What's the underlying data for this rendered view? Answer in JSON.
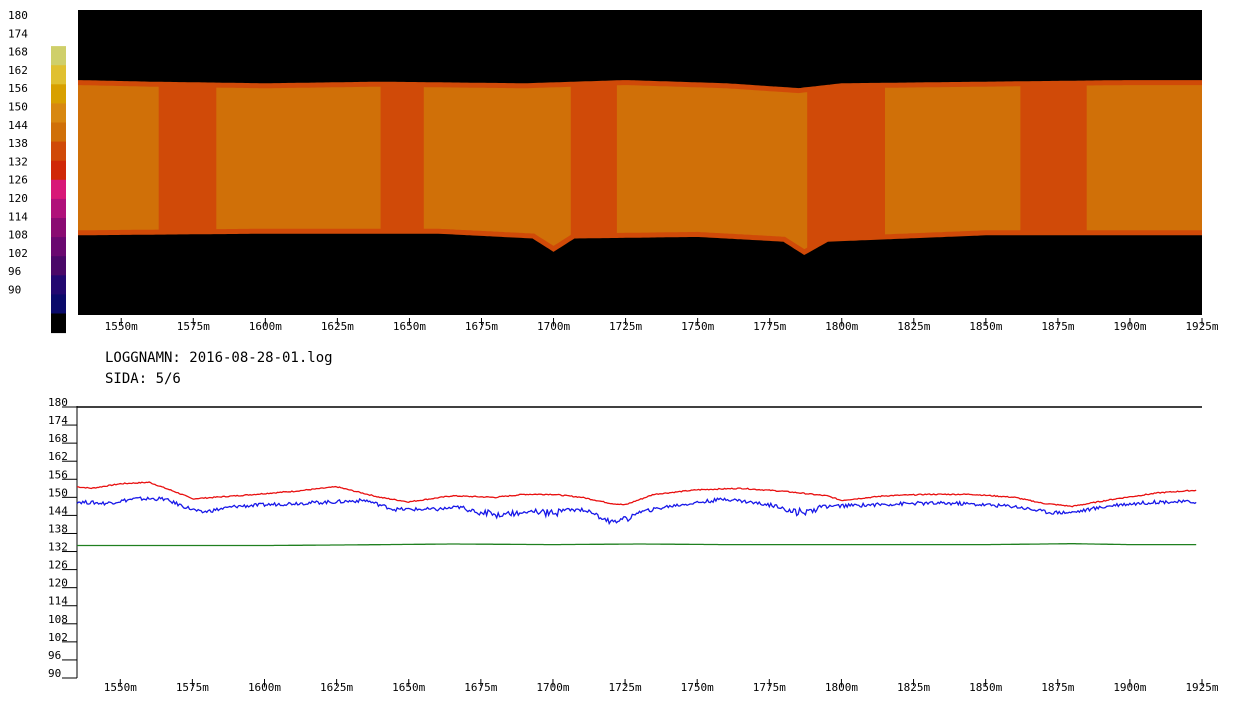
{
  "info": {
    "log_label": "LOGGNAMN: 2016-08-28-01.log",
    "page_label": "SIDA: 5/6"
  },
  "chart_data": [
    {
      "type": "heatmap",
      "title": "",
      "x_unit": "m",
      "x_range": [
        1535,
        1925
      ],
      "x_ticks": [
        "1550m",
        "1575m",
        "1600m",
        "1625m",
        "1650m",
        "1675m",
        "1700m",
        "1725m",
        "1750m",
        "1775m",
        "1800m",
        "1825m",
        "1850m",
        "1875m",
        "1900m",
        "1925m"
      ],
      "colorbar": {
        "labels": [
          "180",
          "174",
          "168",
          "162",
          "156",
          "150",
          "144",
          "138",
          "132",
          "126",
          "120",
          "114",
          "108",
          "102",
          "96",
          "90"
        ],
        "colors": [
          "#ffffff",
          "#cfcf6a",
          "#e0c030",
          "#d8a000",
          "#d88810",
          "#d07008",
          "#d04a08",
          "#d02808",
          "#d81878",
          "#b0107a",
          "#8a0b72",
          "#6a0870",
          "#4a0868",
          "#220870",
          "#0a0a6a",
          "#000000"
        ]
      },
      "band": {
        "top_edge": [
          [
            1535,
            163
          ],
          [
            1560,
            162.5
          ],
          [
            1600,
            162
          ],
          [
            1640,
            162.5
          ],
          [
            1690,
            162
          ],
          [
            1725,
            163
          ],
          [
            1760,
            162
          ],
          [
            1785,
            160.5
          ],
          [
            1800,
            162
          ],
          [
            1850,
            162.5
          ],
          [
            1900,
            163
          ],
          [
            1925,
            163
          ]
        ],
        "bottom_edge": [
          [
            1535,
            115
          ],
          [
            1600,
            115.5
          ],
          [
            1660,
            115.5
          ],
          [
            1693,
            114
          ],
          [
            1700,
            110
          ],
          [
            1707,
            114
          ],
          [
            1750,
            114.5
          ],
          [
            1780,
            113
          ],
          [
            1787,
            109
          ],
          [
            1795,
            113
          ],
          [
            1850,
            115
          ],
          [
            1925,
            115
          ]
        ],
        "fill_color": "#d07008",
        "edge_color": "#d04a08",
        "darker_zones": [
          [
            1563,
            1583
          ],
          [
            1640,
            1655
          ],
          [
            1706,
            1722
          ],
          [
            1788,
            1815
          ],
          [
            1862,
            1885
          ]
        ]
      }
    },
    {
      "type": "line",
      "title": "",
      "x_unit": "m",
      "x_range": [
        1535,
        1925
      ],
      "ylim": [
        90,
        180
      ],
      "y_ticks": [
        "180",
        "174",
        "168",
        "162",
        "156",
        "150",
        "144",
        "138",
        "132",
        "126",
        "120",
        "114",
        "108",
        "102",
        "96",
        "90"
      ],
      "x_ticks": [
        "1550m",
        "1575m",
        "1600m",
        "1625m",
        "1650m",
        "1675m",
        "1700m",
        "1725m",
        "1750m",
        "1775m",
        "1800m",
        "1825m",
        "1850m",
        "1875m",
        "1900m",
        "1925m"
      ],
      "series": [
        {
          "color": "#e81010",
          "points": [
            [
              1535,
              153.5
            ],
            [
              1540,
              153
            ],
            [
              1550,
              154.5
            ],
            [
              1560,
              155
            ],
            [
              1570,
              151.5
            ],
            [
              1575,
              149.5
            ],
            [
              1590,
              150.5
            ],
            [
              1610,
              152
            ],
            [
              1625,
              153.5
            ],
            [
              1640,
              150
            ],
            [
              1650,
              148.5
            ],
            [
              1665,
              150.5
            ],
            [
              1680,
              150
            ],
            [
              1690,
              151
            ],
            [
              1700,
              151
            ],
            [
              1710,
              150
            ],
            [
              1720,
              148
            ],
            [
              1725,
              147.5
            ],
            [
              1735,
              151
            ],
            [
              1750,
              152.5
            ],
            [
              1765,
              153
            ],
            [
              1780,
              152
            ],
            [
              1795,
              150.5
            ],
            [
              1800,
              149
            ],
            [
              1815,
              150.5
            ],
            [
              1830,
              151
            ],
            [
              1845,
              151
            ],
            [
              1860,
              150
            ],
            [
              1870,
              148
            ],
            [
              1880,
              147
            ],
            [
              1895,
              149.5
            ],
            [
              1910,
              151.5
            ],
            [
              1925,
              152.5
            ]
          ]
        },
        {
          "color": "#1818e8",
          "points": [
            [
              1535,
              148.5
            ],
            [
              1545,
              148
            ],
            [
              1555,
              149.5
            ],
            [
              1565,
              149.5
            ],
            [
              1572,
              147
            ],
            [
              1578,
              145
            ],
            [
              1590,
              147
            ],
            [
              1610,
              148
            ],
            [
              1625,
              148.5
            ],
            [
              1635,
              149
            ],
            [
              1645,
              146
            ],
            [
              1660,
              146
            ],
            [
              1670,
              147
            ],
            [
              1680,
              145
            ],
            [
              1690,
              146
            ],
            [
              1700,
              145.5
            ],
            [
              1710,
              146
            ],
            [
              1720,
              143
            ],
            [
              1725,
              144
            ],
            [
              1740,
              147
            ],
            [
              1760,
              149.5
            ],
            [
              1775,
              147.5
            ],
            [
              1785,
              146
            ],
            [
              1795,
              147
            ],
            [
              1810,
              147.5
            ],
            [
              1825,
              148
            ],
            [
              1840,
              148
            ],
            [
              1860,
              147
            ],
            [
              1872,
              145
            ],
            [
              1880,
              145
            ],
            [
              1895,
              147.5
            ],
            [
              1910,
              148.5
            ],
            [
              1925,
              148.5
            ]
          ]
        },
        {
          "color": "#208020",
          "points": [
            [
              1535,
              134
            ],
            [
              1600,
              134
            ],
            [
              1630,
              134.2
            ],
            [
              1665,
              134.5
            ],
            [
              1700,
              134.3
            ],
            [
              1730,
              134.5
            ],
            [
              1760,
              134.3
            ],
            [
              1800,
              134.3
            ],
            [
              1850,
              134.3
            ],
            [
              1880,
              134.6
            ],
            [
              1900,
              134.3
            ],
            [
              1925,
              134.3
            ]
          ]
        }
      ]
    }
  ]
}
